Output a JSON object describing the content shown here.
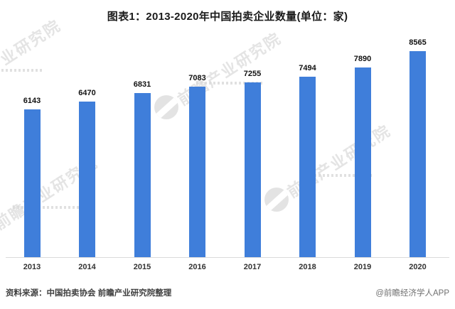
{
  "title": "图表1：2013-2020年中国拍卖企业数量(单位：家)",
  "chart_data": {
    "type": "bar",
    "title": "图表1：2013-2020年中国拍卖企业数量(单位：家)",
    "categories": [
      "2013",
      "2014",
      "2015",
      "2016",
      "2017",
      "2018",
      "2019",
      "2020"
    ],
    "values": [
      6143,
      6470,
      6831,
      7083,
      7255,
      7494,
      7890,
      8565
    ],
    "xlabel": "",
    "ylabel": "",
    "ylim": [
      0,
      9000
    ],
    "grid": false,
    "legend": false,
    "data_labels": true,
    "bar_color": "#3F7EDA",
    "axis_line_color": "#dadada"
  },
  "footer": {
    "source": "资料来源：中国拍卖协会 前瞻产业研究院整理",
    "credit": "@前瞻经济学人APP"
  },
  "watermark": {
    "text": "前瞻产业研究院",
    "color": "#cfcfcf"
  }
}
